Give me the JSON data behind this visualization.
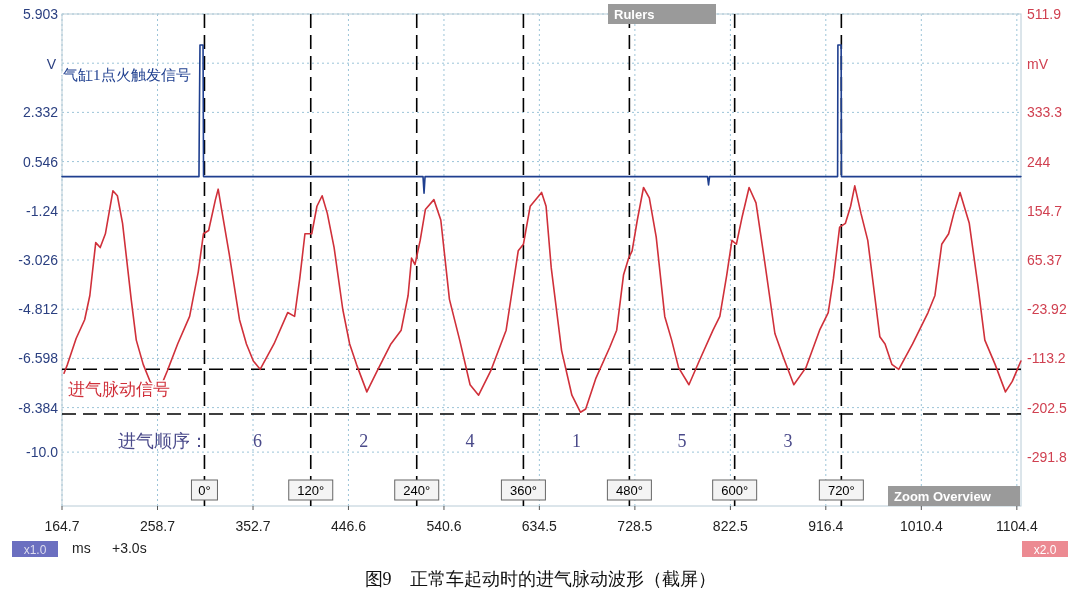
{
  "chart_data": {
    "type": "line",
    "xlabel": "ms",
    "ylabel": "V",
    "y2label": "mV",
    "xlim": [
      164.7,
      1108.5
    ],
    "xticks": [
      164.7,
      258.7,
      352.7,
      446.6,
      540.6,
      634.5,
      728.5,
      822.5,
      916.4,
      1010.4,
      1104.4
    ],
    "ylim": [
      -11.956,
      5.903
    ],
    "yticks": [
      5.903,
      {
        "value": 4.117,
        "label": null
      },
      2.332,
      0.546,
      -1.24,
      -3.026,
      -4.812,
      -6.598,
      -8.384,
      {
        "value": -10.0,
        "label": "-10.0"
      }
    ],
    "y2lim": [
      -381.1,
      511.9
    ],
    "y2ticks": [
      511.9,
      {
        "value": 422.6,
        "label": null
      },
      333.3,
      244.0,
      154.7,
      65.37,
      -23.92,
      -113.2,
      -202.5,
      -291.8
    ],
    "grid": true,
    "legend": false,
    "line_style": "solid",
    "marker": "none",
    "series": [
      {
        "name": "气缸1点火触发信号",
        "color": "#1f3f8f",
        "x": [
          164.7,
          299.5,
          299.8,
          300.5,
          303.5,
          304.0,
          520.0,
          521.0,
          522.0,
          800.0,
          801.0,
          802.0,
          928.0,
          928.3,
          931.5,
          931.8,
          1108.4
        ],
        "values": [
          0,
          0,
          1.8,
          4.78,
          4.78,
          0,
          0,
          -0.6,
          0,
          0,
          -0.3,
          0,
          0,
          4.78,
          4.78,
          0,
          0
        ]
      },
      {
        "name": "进气脉动信号",
        "axis": "y2",
        "color": "#d0303a",
        "x": [
          166.7,
          170.1,
          178.6,
          187.0,
          192.1,
          197.9,
          202.3,
          207.4,
          214.8,
          219.2,
          224.3,
          232.8,
          237.8,
          244.6,
          251.4,
          259.8,
          268.3,
          278.5,
          290.3,
          298.8,
          303.9,
          309.0,
          315.7,
          318.4,
          321.8,
          329.3,
          339.4,
          346.2,
          353.0,
          359.7,
          373.3,
          386.8,
          393.6,
          398.7,
          403.8,
          410.5,
          415.6,
          420.7,
          425.8,
          432.5,
          441.0,
          447.8,
          454.5,
          464.7,
          474.9,
          488.4,
          498.5,
          505.3,
          508.7,
          512.1,
          517.2,
          522.3,
          530.7,
          537.5,
          546.0,
          556.1,
          566.3,
          574.7,
          586.6,
          601.8,
          613.7,
          618.8,
          625.5,
          636.7,
          641.1,
          646.2,
          656.4,
          666.5,
          675.0,
          680.1,
          690.2,
          703.8,
          710.6,
          717.3,
          722.4,
          725.8,
          730.9,
          737.0,
          742.7,
          749.5,
          757.9,
          764.7,
          771.5,
          781.7,
          791.8,
          805.4,
          812.1,
          818.9,
          824.0,
          828.4,
          834.1,
          840.9,
          847.7,
          856.2,
          866.3,
          874.8,
          884.9,
          896.8,
          910.3,
          918.8,
          923.9,
          930.0,
          935.7,
          940.8,
          944.9,
          951.0,
          957.7,
          969.6,
          974.7,
          981.4,
          988.2,
          1001.8,
          1017.0,
          1023.8,
          1030.5,
          1037.3,
          1042.4,
          1048.5,
          1057.6,
          1066.1,
          1072.9,
          1083.0,
          1093.2,
          1099.9,
          1108.4
        ],
        "values": [
          -140,
          -124,
          -77,
          -43,
          1,
          97,
          88,
          113,
          191,
          182,
          132,
          -6,
          -80,
          -124,
          -155,
          -174,
          -136,
          -87,
          -37,
          44,
          113,
          119,
          175,
          194,
          157,
          76,
          -43,
          -87,
          -118,
          -133,
          -87,
          -30,
          -37,
          32,
          113,
          113,
          163,
          182,
          150,
          88,
          -24,
          -87,
          -124,
          -174,
          -136,
          -87,
          -62,
          1,
          69,
          57,
          101,
          157,
          175,
          138,
          -6,
          -80,
          -161,
          -180,
          -136,
          -62,
          82,
          94,
          163,
          188,
          163,
          51,
          -99,
          -180,
          -211,
          -205,
          -149,
          -93,
          -62,
          38,
          69,
          82,
          138,
          197,
          178,
          107,
          -37,
          -80,
          -130,
          -161,
          -118,
          -62,
          -37,
          38,
          101,
          94,
          144,
          197,
          169,
          63,
          -68,
          -112,
          -161,
          -130,
          -62,
          -30,
          32,
          125,
          132,
          163,
          200,
          150,
          101,
          -74,
          -87,
          -124,
          -133,
          -87,
          -30,
          1,
          94,
          113,
          150,
          188,
          132,
          19,
          -80,
          -124,
          -174,
          -155,
          -118
        ]
      }
    ],
    "ref_lines": [
      {
        "axis": "x",
        "value": 304.9,
        "color": "#000000",
        "line_style": "dashed"
      },
      {
        "axis": "x",
        "value": 409.5,
        "color": "#000000",
        "line_style": "dashed"
      },
      {
        "axis": "x",
        "value": 513.8,
        "color": "#000000",
        "line_style": "dashed"
      },
      {
        "axis": "x",
        "value": 618.8,
        "color": "#000000",
        "line_style": "dashed"
      },
      {
        "axis": "x",
        "value": 723.1,
        "color": "#000000",
        "line_style": "dashed"
      },
      {
        "axis": "x",
        "value": 826.7,
        "color": "#000000",
        "line_style": "dashed"
      },
      {
        "axis": "x",
        "value": 931.7,
        "color": "#000000",
        "line_style": "dashed"
      },
      {
        "axis": "y2",
        "value": -133,
        "color": "#000000",
        "line_style": "dashed"
      },
      {
        "axis": "y2",
        "value": -214,
        "color": "#000000",
        "line_style": "dashed"
      }
    ],
    "annotations": [
      "进气顺序：",
      "6",
      "2",
      "4",
      "1",
      "5",
      "3",
      "0°",
      "120°",
      "240°",
      "360°",
      "480°",
      "600°",
      "720°",
      "Rulers",
      "Zoom Overview",
      "x1.0",
      "+3.0s",
      "x2.0",
      "图9　正常车起动时的进气脉动波形（截屏）"
    ]
  }
}
